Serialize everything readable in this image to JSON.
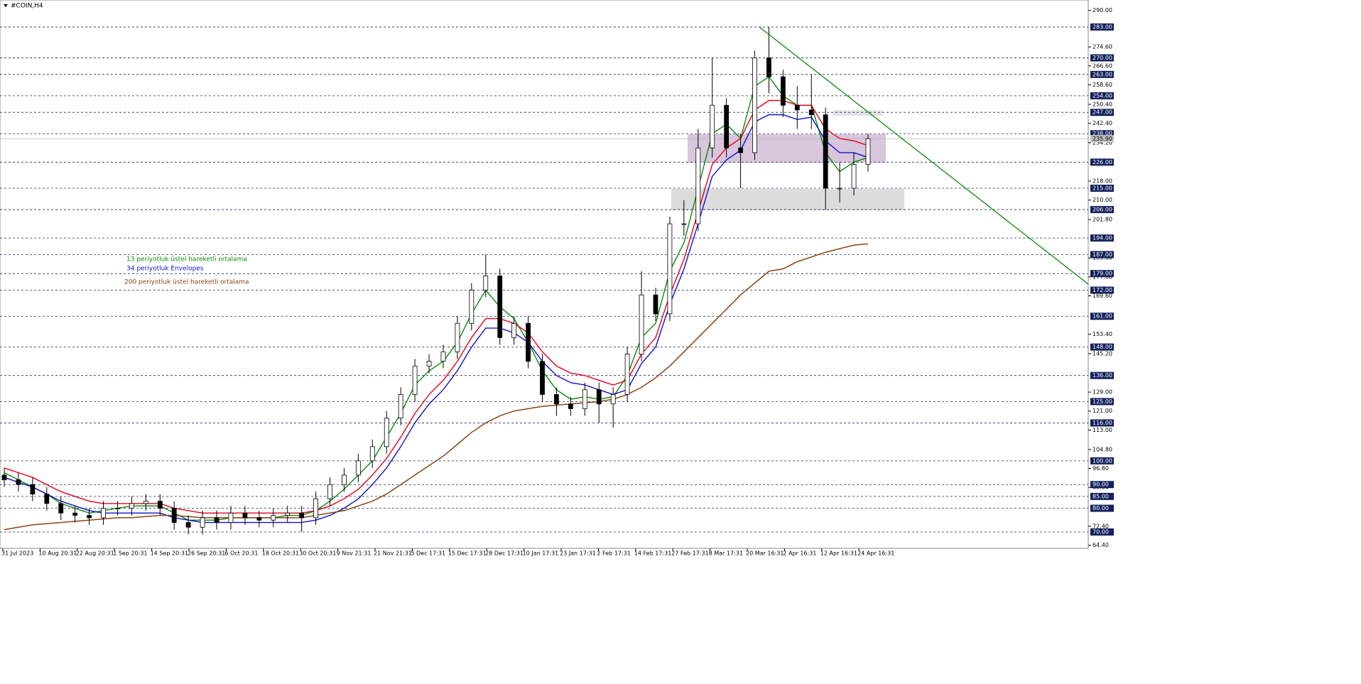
{
  "chart_data": {
    "type": "candlestick",
    "title": "#COIN,H4",
    "ylim": [
      63.1,
      294.4
    ],
    "yticks": [
      {
        "value": 290,
        "label": "290.00"
      },
      {
        "value": 274.6,
        "label": "274.60"
      },
      {
        "value": 266.6,
        "label": "266.60"
      },
      {
        "value": 258.6,
        "label": "258.60"
      },
      {
        "value": 250.4,
        "label": "250.40"
      },
      {
        "value": 242.4,
        "label": "242.40"
      },
      {
        "value": 234.2,
        "label": "234.20"
      },
      {
        "value": 218,
        "label": "218.00"
      },
      {
        "value": 210,
        "label": "210.00"
      },
      {
        "value": 201.8,
        "label": "201.80"
      },
      {
        "value": 185.6,
        "label": "185.60"
      },
      {
        "value": 177.6,
        "label": "177.60"
      },
      {
        "value": 169.6,
        "label": "169.60"
      },
      {
        "value": 153.4,
        "label": "153.40"
      },
      {
        "value": 145.2,
        "label": "145.20"
      },
      {
        "value": 129,
        "label": "129.00"
      },
      {
        "value": 121,
        "label": "121.00"
      },
      {
        "value": 113,
        "label": "113.00"
      },
      {
        "value": 104.8,
        "label": "104.80"
      },
      {
        "value": 96.8,
        "label": "96.80"
      },
      {
        "value": 88.8,
        "label": "88.80"
      },
      {
        "value": 72.4,
        "label": "72.40"
      },
      {
        "value": 64.4,
        "label": "64.40"
      }
    ],
    "levels": [
      {
        "value": 283,
        "label": "283.00"
      },
      {
        "value": 270,
        "label": "270.00"
      },
      {
        "value": 263,
        "label": "263.00"
      },
      {
        "value": 254,
        "label": "254.00"
      },
      {
        "value": 247,
        "label": "247.00"
      },
      {
        "value": 238,
        "label": "238.00"
      },
      {
        "value": 226,
        "label": "226.00"
      },
      {
        "value": 215,
        "label": "215.00"
      },
      {
        "value": 206,
        "label": "206.00"
      },
      {
        "value": 194,
        "label": "194.00"
      },
      {
        "value": 187,
        "label": "187.00"
      },
      {
        "value": 179,
        "label": "179.00"
      },
      {
        "value": 172,
        "label": "172.00"
      },
      {
        "value": 161,
        "label": "161.00"
      },
      {
        "value": 148,
        "label": "148.00"
      },
      {
        "value": 136,
        "label": "136.00"
      },
      {
        "value": 125,
        "label": "125.00"
      },
      {
        "value": 116,
        "label": "116.00"
      },
      {
        "value": 100,
        "label": "100.00"
      },
      {
        "value": 90,
        "label": "90.00"
      },
      {
        "value": 85,
        "label": "85.00"
      },
      {
        "value": 80,
        "label": "80.00"
      },
      {
        "value": 70,
        "label": "70.00"
      }
    ],
    "current_price": {
      "value": 235.9,
      "label": "235.90"
    },
    "xticks": [
      "31 Jul 2023",
      "10 Aug 20:31",
      "22 Aug 20:31",
      "1 Sep 20:31",
      "14 Sep 20:31",
      "26 Sep 20:31",
      "6 Oct 20:31",
      "18 Oct 20:31",
      "30 Oct 20:31",
      "9 Nov 21:31",
      "21 Nov 21:31",
      "5 Dec 17:31",
      "15 Dec 17:31",
      "28 Dec 17:31",
      "10 Jan 17:31",
      "23 Jan 17:31",
      "2 Feb 17:31",
      "14 Feb 17:31",
      "27 Feb 17:31",
      "8 Mar 17:31",
      "20 Mar 16:31",
      "2 Apr 16:31",
      "12 Apr 16:31",
      "24 Apr 16:31"
    ],
    "open": [
      94,
      92,
      90,
      86,
      82,
      78,
      77,
      76,
      80,
      80,
      82,
      83,
      80,
      74,
      72,
      76,
      74,
      78,
      76,
      75,
      77,
      78,
      76,
      84,
      90,
      94,
      100,
      106,
      118,
      128,
      140,
      142,
      146,
      158,
      172,
      178,
      152,
      158,
      142,
      128,
      124,
      122,
      130,
      124,
      128,
      145,
      170,
      162,
      200,
      200,
      232,
      250,
      232,
      230,
      270,
      262,
      250,
      248,
      246,
      215,
      215,
      225
    ],
    "high": [
      97,
      95,
      93,
      89,
      85,
      81,
      80,
      83,
      83,
      85,
      86,
      86,
      83,
      77,
      79,
      79,
      81,
      81,
      79,
      80,
      81,
      81,
      87,
      93,
      97,
      103,
      109,
      121,
      131,
      143,
      145,
      149,
      161,
      175,
      187,
      181,
      161,
      161,
      145,
      131,
      127,
      133,
      133,
      131,
      148,
      180,
      173,
      203,
      210,
      240,
      270,
      253,
      238,
      273,
      283,
      265,
      258,
      263,
      249,
      226,
      230,
      238
    ],
    "low": [
      89,
      87,
      83,
      79,
      75,
      74,
      73,
      73,
      77,
      77,
      79,
      77,
      71,
      69,
      69,
      71,
      71,
      73,
      72,
      72,
      74,
      70,
      73,
      81,
      87,
      91,
      97,
      103,
      115,
      125,
      137,
      139,
      143,
      155,
      169,
      149,
      149,
      139,
      125,
      119,
      119,
      119,
      116,
      114,
      125,
      142,
      159,
      159,
      195,
      197,
      228,
      228,
      215,
      227,
      255,
      245,
      240,
      240,
      206,
      209,
      212,
      222
    ],
    "close": [
      92,
      90,
      86,
      82,
      78,
      77,
      76,
      80,
      80,
      82,
      83,
      80,
      74,
      72,
      76,
      74,
      78,
      76,
      75,
      77,
      78,
      76,
      84,
      90,
      94,
      100,
      106,
      118,
      128,
      140,
      142,
      146,
      158,
      172,
      178,
      152,
      158,
      142,
      128,
      124,
      122,
      130,
      124,
      128,
      145,
      170,
      162,
      200,
      200,
      232,
      250,
      232,
      230,
      270,
      262,
      250,
      248,
      246,
      215,
      215,
      225,
      235.9
    ],
    "series": [
      {
        "name": "13 periyotluk üstel hareketli ortalama",
        "color": "#0a8a0a",
        "values": [
          95,
          92,
          89,
          86,
          82,
          80,
          78,
          79,
          80,
          81,
          81,
          81,
          78,
          75,
          75,
          75,
          76,
          76,
          76,
          76,
          77,
          77,
          79,
          83,
          88,
          94,
          100,
          110,
          120,
          132,
          138,
          142,
          150,
          162,
          172,
          165,
          160,
          150,
          138,
          130,
          126,
          127,
          126,
          127,
          136,
          152,
          158,
          180,
          192,
          215,
          238,
          242,
          236,
          258,
          262,
          254,
          250,
          250,
          230,
          222,
          226,
          228
        ]
      },
      {
        "color": "#e8001c",
        "values": [
          97,
          95,
          93,
          90,
          87,
          85,
          83,
          82,
          82,
          82,
          82,
          82,
          80,
          79,
          78,
          78,
          78,
          78,
          78,
          78,
          78,
          78,
          79,
          81,
          84,
          88,
          94,
          101,
          110,
          120,
          128,
          134,
          142,
          152,
          160,
          160,
          158,
          154,
          146,
          140,
          137,
          136,
          134,
          132,
          134,
          145,
          152,
          170,
          185,
          205,
          225,
          232,
          236,
          248,
          252,
          252,
          250,
          250,
          240,
          236,
          235,
          233
        ]
      },
      {
        "name": "34 periyotluk Envelopes",
        "color": "#1010d0",
        "values": [
          93,
          91,
          89,
          86,
          83,
          81,
          79,
          78,
          78,
          78,
          78,
          78,
          76,
          75,
          74,
          74,
          74,
          74,
          74,
          74,
          74,
          74,
          75,
          77,
          80,
          84,
          90,
          97,
          106,
          116,
          124,
          130,
          138,
          148,
          156,
          156,
          154,
          150,
          142,
          136,
          133,
          132,
          130,
          128,
          130,
          141,
          148,
          166,
          181,
          200,
          220,
          227,
          231,
          243,
          246,
          246,
          244,
          245,
          235,
          230,
          230,
          228
        ]
      },
      {
        "name": "200 periyotluk üstel hareketli ortalama",
        "color": "#8b4513",
        "values": [
          71,
          72,
          73,
          73.5,
          74,
          74.5,
          75,
          75.5,
          76,
          76,
          76.5,
          77,
          77,
          76.5,
          76,
          76,
          76,
          76,
          76,
          76,
          76,
          76,
          77,
          78,
          79,
          81,
          83,
          86,
          90,
          94,
          98,
          102,
          107,
          112,
          116,
          119,
          121,
          122,
          123,
          123.5,
          124,
          124.5,
          125,
          126,
          128,
          131,
          135,
          140,
          146,
          152,
          158,
          164,
          170,
          175,
          180,
          181,
          184,
          186,
          188,
          189.5,
          191,
          191.5
        ]
      }
    ]
  }
}
